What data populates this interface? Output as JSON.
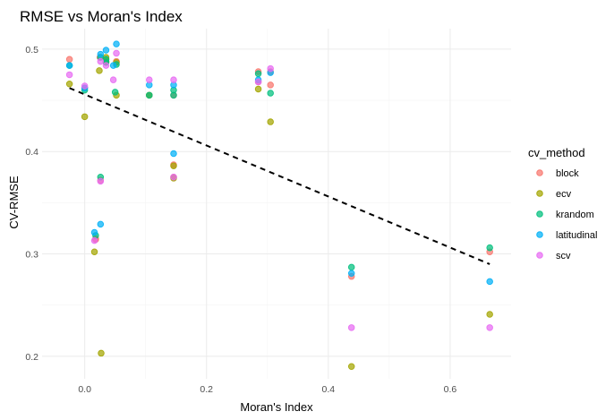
{
  "chart_data": {
    "type": "scatter",
    "title": "RMSE vs Moran's Index",
    "xlabel": "Moran's Index",
    "ylabel": "CV-RMSE",
    "xlim": [
      -0.07,
      0.7
    ],
    "ylim": [
      0.178,
      0.52
    ],
    "x_ticks": [
      "0.0",
      "0.2",
      "0.4",
      "0.6"
    ],
    "x_tick_values": [
      0.0,
      0.2,
      0.4,
      0.6
    ],
    "y_ticks": [
      "0.2",
      "0.3",
      "0.4",
      "0.5"
    ],
    "y_tick_values": [
      0.2,
      0.3,
      0.4,
      0.5
    ],
    "grid": true,
    "legend_position": "right",
    "legend_title": "cv_method",
    "trend_line": {
      "style": "dashed",
      "color": "#000000",
      "x": [
        -0.025,
        0.665
      ],
      "y": [
        0.462,
        0.29
      ]
    },
    "series": [
      {
        "name": "block",
        "color": "#F8766D",
        "x": [
          -0.025,
          0.0,
          0.025,
          0.035,
          0.035,
          0.052,
          0.018,
          0.018,
          0.026,
          0.106,
          0.146,
          0.146,
          0.146,
          0.285,
          0.285,
          0.305,
          0.305,
          0.438,
          0.665
        ],
        "y": [
          0.49,
          0.462,
          0.492,
          0.488,
          0.49,
          0.488,
          0.315,
          0.314,
          0.372,
          0.455,
          0.455,
          0.387,
          0.375,
          0.478,
          0.468,
          0.465,
          0.478,
          0.278,
          0.302
        ]
      },
      {
        "name": "ecv",
        "color": "#A3A500",
        "x": [
          -0.025,
          0.0,
          0.016,
          0.024,
          0.027,
          0.035,
          0.035,
          0.052,
          0.052,
          0.106,
          0.146,
          0.146,
          0.285,
          0.305,
          0.438,
          0.665
        ],
        "y": [
          0.466,
          0.434,
          0.302,
          0.479,
          0.203,
          0.492,
          0.488,
          0.487,
          0.455,
          0.455,
          0.386,
          0.374,
          0.461,
          0.429,
          0.19,
          0.241
        ]
      },
      {
        "name": "krandom",
        "color": "#00BF7D",
        "x": [
          -0.025,
          0.0,
          0.018,
          0.026,
          0.026,
          0.035,
          0.035,
          0.05,
          0.052,
          0.106,
          0.146,
          0.146,
          0.285,
          0.305,
          0.438,
          0.665
        ],
        "y": [
          0.484,
          0.46,
          0.318,
          0.375,
          0.492,
          0.49,
          0.487,
          0.458,
          0.485,
          0.455,
          0.46,
          0.455,
          0.476,
          0.457,
          0.287,
          0.306
        ]
      },
      {
        "name": "latitudinal",
        "color": "#00B0F6",
        "x": [
          -0.025,
          0.0,
          0.016,
          0.026,
          0.026,
          0.035,
          0.047,
          0.052,
          0.106,
          0.146,
          0.146,
          0.285,
          0.305,
          0.438,
          0.665
        ],
        "y": [
          0.484,
          0.462,
          0.321,
          0.329,
          0.495,
          0.499,
          0.484,
          0.505,
          0.465,
          0.398,
          0.465,
          0.47,
          0.477,
          0.281,
          0.273
        ]
      },
      {
        "name": "scv",
        "color": "#E76BF3",
        "x": [
          -0.025,
          0.0,
          0.016,
          0.026,
          0.026,
          0.035,
          0.047,
          0.052,
          0.106,
          0.146,
          0.146,
          0.285,
          0.305,
          0.438,
          0.665
        ],
        "y": [
          0.475,
          0.464,
          0.313,
          0.371,
          0.488,
          0.484,
          0.47,
          0.496,
          0.47,
          0.47,
          0.375,
          0.468,
          0.481,
          0.228,
          0.228
        ]
      }
    ]
  }
}
